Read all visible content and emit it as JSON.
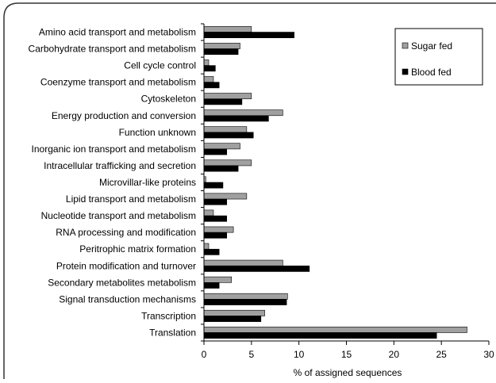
{
  "chart_data": {
    "type": "bar",
    "orientation": "horizontal",
    "categories": [
      "Amino acid transport and metabolism",
      "Carbohydrate transport and metabolism",
      "Cell cycle control",
      "Coenzyme transport and metabolism",
      "Cytoskeleton",
      "Energy production and conversion",
      "Function unknown",
      "Inorganic ion transport and metabolism",
      "Intracellular trafficking and secretion",
      "Microvillar-like proteins",
      "Lipid transport and metabolism",
      "Nucleotide transport and metabolism",
      "RNA processing and modification",
      "Peritrophic matrix formation",
      "Protein modification and turnover",
      "Secondary metabolites metabolism",
      "Signal transduction mechanisms",
      "Transcription",
      "Translation"
    ],
    "series": [
      {
        "name": "Sugar fed",
        "color": "#a0a0a0",
        "values": [
          5.0,
          3.8,
          0.5,
          1.0,
          5.0,
          8.3,
          4.5,
          3.8,
          5.0,
          0.2,
          4.5,
          1.0,
          3.1,
          0.5,
          8.3,
          2.9,
          8.8,
          6.4,
          27.7
        ]
      },
      {
        "name": "Blood fed",
        "color": "#000000",
        "values": [
          9.5,
          3.6,
          1.2,
          1.6,
          4.0,
          6.8,
          5.2,
          2.4,
          3.6,
          2.0,
          2.4,
          2.4,
          2.4,
          1.6,
          11.1,
          1.6,
          8.7,
          6.0,
          24.5
        ]
      }
    ],
    "x_ticks": [
      "0",
      "5",
      "10",
      "15",
      "20",
      "25",
      "30"
    ],
    "xlim": [
      0,
      30
    ],
    "xlabel": "% of assigned sequences",
    "title": "",
    "legend_position": "top-right",
    "grid": false
  }
}
